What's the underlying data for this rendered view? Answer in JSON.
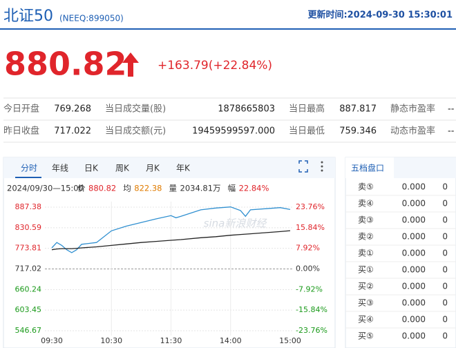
{
  "header": {
    "name": "北证50",
    "code": "(NEEQ:899050)",
    "update_time": "更新时间:2024-09-30 15:30:01"
  },
  "quote": {
    "price": "880.82",
    "change": "+163.79(+22.84%)"
  },
  "stats": [
    [
      "今日开盘",
      "769.268",
      "当日成交量(股)",
      "1878665803",
      "当日最高",
      "887.817",
      "静态市盈率",
      "--"
    ],
    [
      "昨日收盘",
      "717.022",
      "当日成交额(元)",
      "19459599597.000",
      "当日最低",
      "759.346",
      "动态市盈率",
      "--"
    ]
  ],
  "tabs": [
    "分时",
    "年线",
    "日K",
    "周K",
    "月K",
    "年K"
  ],
  "chart_data": {
    "type": "line",
    "info": {
      "time": "2024/09/30—15:00",
      "items": [
        {
          "label": "价",
          "value": "880.82",
          "color": "#e0252b"
        },
        {
          "label": "均",
          "value": "822.38",
          "color": "#e07b00"
        },
        {
          "label": "量",
          "value": "2034.81万",
          "color": "#333333"
        },
        {
          "label": "幅",
          "value": "22.84%",
          "color": "#e0252b"
        }
      ]
    },
    "watermark": "sina新浪财经",
    "x": [
      0,
      5,
      10,
      15,
      20,
      25,
      30,
      45,
      60,
      75,
      90,
      105,
      120,
      125,
      130,
      150,
      165,
      180,
      190,
      195,
      200,
      215,
      230,
      240
    ],
    "series": [
      {
        "name": "价",
        "color": "#2f8fd0",
        "values": [
          775,
          790,
          782,
          770,
          762,
          770,
          785,
          790,
          822,
          835,
          845,
          855,
          864,
          858,
          862,
          880,
          885,
          888,
          878,
          862,
          880,
          883,
          886,
          880.82
        ]
      },
      {
        "name": "均",
        "color": "#222222",
        "values": [
          770,
          772,
          773,
          773,
          773,
          774,
          775,
          778,
          782,
          786,
          790,
          793,
          796,
          797,
          798,
          803,
          806,
          810,
          812,
          813,
          814,
          817,
          820,
          822.38
        ]
      }
    ],
    "xlim": [
      0,
      240
    ],
    "xticks": [
      {
        "value": 0,
        "label": "09:30"
      },
      {
        "value": 60,
        "label": "10:30"
      },
      {
        "value": 120,
        "label": "11:30"
      },
      {
        "value": 180,
        "label": "14:00"
      },
      {
        "value": 240,
        "label": "15:00"
      }
    ],
    "ylim": [
      546.67,
      887.38
    ],
    "yticks": [
      887.38,
      830.59,
      773.81,
      717.02,
      660.24,
      603.45,
      546.67
    ],
    "y2lim": [
      -23.76,
      23.76
    ],
    "y2ticks": [
      {
        "value": 23.76,
        "label": "23.76%"
      },
      {
        "value": 15.84,
        "label": "15.84%"
      },
      {
        "value": 7.92,
        "label": "7.92%"
      },
      {
        "value": 0,
        "label": "0.00%"
      },
      {
        "value": -7.92,
        "label": "-7.92%"
      },
      {
        "value": -15.84,
        "label": "-15.84%"
      },
      {
        "value": -23.76,
        "label": "-23.76%"
      }
    ],
    "grid": true
  },
  "order_book": {
    "title": "五档盘口",
    "rows": [
      [
        "卖⑤",
        "0.000",
        "0"
      ],
      [
        "卖④",
        "0.000",
        "0"
      ],
      [
        "卖③",
        "0.000",
        "0"
      ],
      [
        "卖②",
        "0.000",
        "0"
      ],
      [
        "卖①",
        "0.000",
        "0"
      ],
      [
        "买①",
        "0.000",
        "0"
      ],
      [
        "买②",
        "0.000",
        "0"
      ],
      [
        "买③",
        "0.000",
        "0"
      ],
      [
        "买④",
        "0.000",
        "0"
      ],
      [
        "买⑤",
        "0.000",
        "0"
      ]
    ]
  }
}
